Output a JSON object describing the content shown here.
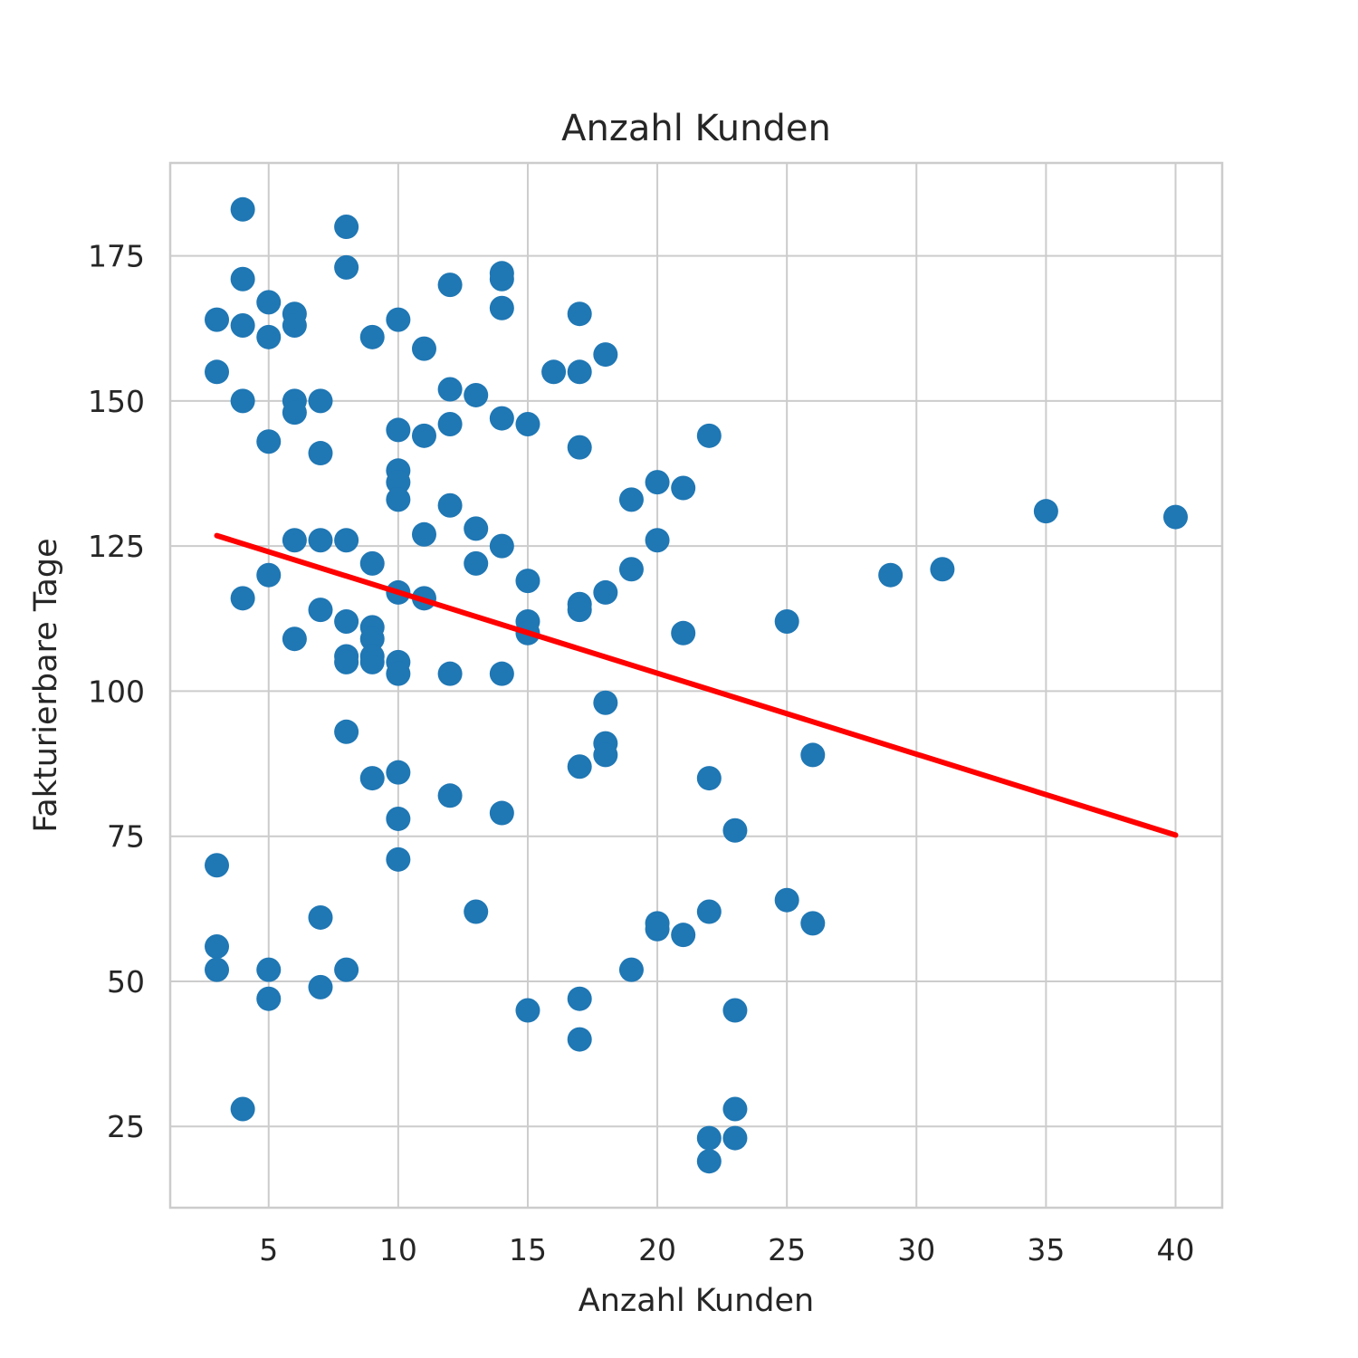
{
  "chart_data": {
    "type": "scatter",
    "title": "Anzahl Kunden",
    "xlabel": "Anzahl Kunden",
    "ylabel": "Fakturierbare Tage",
    "xlim": [
      1.2,
      41.8
    ],
    "ylim": [
      11,
      191
    ],
    "xticks": [
      5,
      10,
      15,
      20,
      25,
      30,
      35,
      40
    ],
    "yticks": [
      25,
      50,
      75,
      100,
      125,
      150,
      175
    ],
    "grid": true,
    "colors": {
      "points": "#1f77b4",
      "fit_line": "#ff0000",
      "grid": "#cccccc"
    },
    "fit_line": {
      "x": [
        3,
        40
      ],
      "y": [
        126.8,
        75.2
      ]
    },
    "points": [
      [
        4,
        183
      ],
      [
        8,
        180
      ],
      [
        8,
        173
      ],
      [
        4,
        171
      ],
      [
        14,
        172
      ],
      [
        14,
        171
      ],
      [
        12,
        170
      ],
      [
        5,
        167
      ],
      [
        14,
        166
      ],
      [
        6,
        165
      ],
      [
        17,
        165
      ],
      [
        3,
        164
      ],
      [
        10,
        164
      ],
      [
        4,
        163
      ],
      [
        6,
        163
      ],
      [
        5,
        161
      ],
      [
        9,
        161
      ],
      [
        11,
        159
      ],
      [
        18,
        158
      ],
      [
        16,
        155
      ],
      [
        17,
        155
      ],
      [
        3,
        155
      ],
      [
        12,
        152
      ],
      [
        13,
        151
      ],
      [
        6,
        150
      ],
      [
        7,
        150
      ],
      [
        4,
        150
      ],
      [
        6,
        148
      ],
      [
        14,
        147
      ],
      [
        12,
        146
      ],
      [
        15,
        146
      ],
      [
        10,
        145
      ],
      [
        11,
        144
      ],
      [
        5,
        143
      ],
      [
        22,
        144
      ],
      [
        17,
        142
      ],
      [
        7,
        141
      ],
      [
        10,
        138
      ],
      [
        10,
        136
      ],
      [
        20,
        136
      ],
      [
        21,
        135
      ],
      [
        10,
        133
      ],
      [
        19,
        133
      ],
      [
        12,
        132
      ],
      [
        35,
        131
      ],
      [
        40,
        130
      ],
      [
        13,
        128
      ],
      [
        11,
        127
      ],
      [
        8,
        126
      ],
      [
        6,
        126
      ],
      [
        7,
        126
      ],
      [
        20,
        126
      ],
      [
        14,
        125
      ],
      [
        9,
        122
      ],
      [
        13,
        122
      ],
      [
        19,
        121
      ],
      [
        31,
        121
      ],
      [
        29,
        120
      ],
      [
        5,
        120
      ],
      [
        15,
        119
      ],
      [
        18,
        117
      ],
      [
        10,
        117
      ],
      [
        4,
        116
      ],
      [
        11,
        116
      ],
      [
        17,
        115
      ],
      [
        17,
        114
      ],
      [
        7,
        114
      ],
      [
        8,
        112
      ],
      [
        15,
        112
      ],
      [
        25,
        112
      ],
      [
        9,
        111
      ],
      [
        15,
        110
      ],
      [
        21,
        110
      ],
      [
        9,
        109
      ],
      [
        6,
        109
      ],
      [
        9,
        106
      ],
      [
        8,
        106
      ],
      [
        10,
        105
      ],
      [
        9,
        105
      ],
      [
        8,
        105
      ],
      [
        10,
        103
      ],
      [
        12,
        103
      ],
      [
        14,
        103
      ],
      [
        18,
        98
      ],
      [
        8,
        93
      ],
      [
        18,
        91
      ],
      [
        18,
        89
      ],
      [
        26,
        89
      ],
      [
        17,
        87
      ],
      [
        10,
        86
      ],
      [
        9,
        85
      ],
      [
        22,
        85
      ],
      [
        12,
        82
      ],
      [
        14,
        79
      ],
      [
        10,
        78
      ],
      [
        23,
        76
      ],
      [
        10,
        71
      ],
      [
        3,
        70
      ],
      [
        25,
        64
      ],
      [
        13,
        62
      ],
      [
        22,
        62
      ],
      [
        7,
        61
      ],
      [
        20,
        60
      ],
      [
        26,
        60
      ],
      [
        20,
        59
      ],
      [
        21,
        58
      ],
      [
        3,
        56
      ],
      [
        3,
        52
      ],
      [
        5,
        52
      ],
      [
        8,
        52
      ],
      [
        19,
        52
      ],
      [
        7,
        49
      ],
      [
        17,
        47
      ],
      [
        5,
        47
      ],
      [
        15,
        45
      ],
      [
        23,
        45
      ],
      [
        17,
        40
      ],
      [
        4,
        28
      ],
      [
        23,
        28
      ],
      [
        22,
        23
      ],
      [
        23,
        23
      ],
      [
        22,
        19
      ]
    ]
  }
}
